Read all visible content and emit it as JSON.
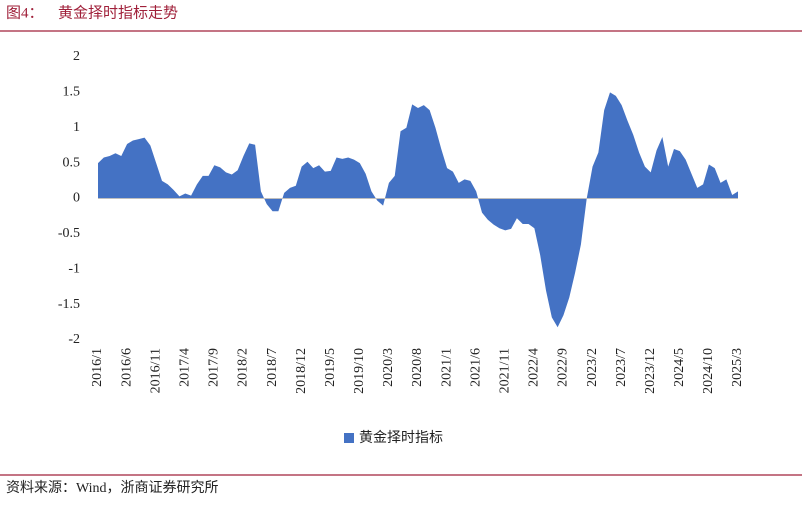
{
  "header": {
    "label": "图4：",
    "title": "黄金择时指标走势"
  },
  "chart_data": {
    "type": "area",
    "categories": [
      "2016/1",
      null,
      null,
      null,
      null,
      "2016/6",
      null,
      null,
      null,
      null,
      "2016/11",
      null,
      null,
      null,
      null,
      "2017/4",
      null,
      null,
      null,
      null,
      "2017/9",
      null,
      null,
      null,
      null,
      "2018/2",
      null,
      null,
      null,
      null,
      "2018/7",
      null,
      null,
      null,
      null,
      "2018/12",
      null,
      null,
      null,
      null,
      "2019/5",
      null,
      null,
      null,
      null,
      "2019/10",
      null,
      null,
      null,
      null,
      "2020/3",
      null,
      null,
      null,
      null,
      "2020/8",
      null,
      null,
      null,
      null,
      "2021/1",
      null,
      null,
      null,
      null,
      "2021/6",
      null,
      null,
      null,
      null,
      "2021/11",
      null,
      null,
      null,
      null,
      "2022/4",
      null,
      null,
      null,
      null,
      "2022/9",
      null,
      null,
      null,
      null,
      "2023/2",
      null,
      null,
      null,
      null,
      "2023/7",
      null,
      null,
      null,
      null,
      "2023/12",
      null,
      null,
      null,
      null,
      "2024/5",
      null,
      null,
      null,
      null,
      "2024/10",
      null,
      null,
      null,
      null,
      "2025/3"
    ],
    "series": [
      {
        "name": "黄金择时指标",
        "color": "#4472c4",
        "values": [
          0.5,
          0.58,
          0.6,
          0.64,
          0.6,
          0.77,
          0.82,
          0.84,
          0.86,
          0.75,
          0.5,
          0.25,
          0.2,
          0.12,
          0.03,
          0.07,
          0.04,
          0.2,
          0.32,
          0.32,
          0.47,
          0.44,
          0.37,
          0.34,
          0.4,
          0.6,
          0.78,
          0.76,
          0.1,
          -0.08,
          -0.18,
          -0.18,
          0.08,
          0.15,
          0.18,
          0.45,
          0.52,
          0.43,
          0.47,
          0.38,
          0.39,
          0.58,
          0.56,
          0.58,
          0.55,
          0.5,
          0.35,
          0.1,
          -0.03,
          -0.1,
          0.22,
          0.32,
          0.95,
          1.0,
          1.33,
          1.28,
          1.32,
          1.25,
          1.0,
          0.7,
          0.43,
          0.38,
          0.22,
          0.27,
          0.25,
          0.1,
          -0.2,
          -0.3,
          -0.37,
          -0.42,
          -0.45,
          -0.43,
          -0.28,
          -0.36,
          -0.36,
          -0.42,
          -0.8,
          -1.3,
          -1.68,
          -1.82,
          -1.65,
          -1.4,
          -1.05,
          -0.65,
          0.0,
          0.45,
          0.65,
          1.25,
          1.5,
          1.45,
          1.32,
          1.1,
          0.9,
          0.65,
          0.45,
          0.37,
          0.68,
          0.87,
          0.45,
          0.7,
          0.67,
          0.55,
          0.35,
          0.15,
          0.2,
          0.48,
          0.43,
          0.22,
          0.27,
          0.05,
          0.1
        ]
      }
    ],
    "ylim": [
      -2,
      2
    ],
    "yticks": [
      -2,
      -1.5,
      -1,
      -0.5,
      0,
      0.5,
      1,
      1.5,
      2
    ],
    "grid": false,
    "legend": "bottom"
  },
  "source": "资料来源：Wind，浙商证券研究所"
}
